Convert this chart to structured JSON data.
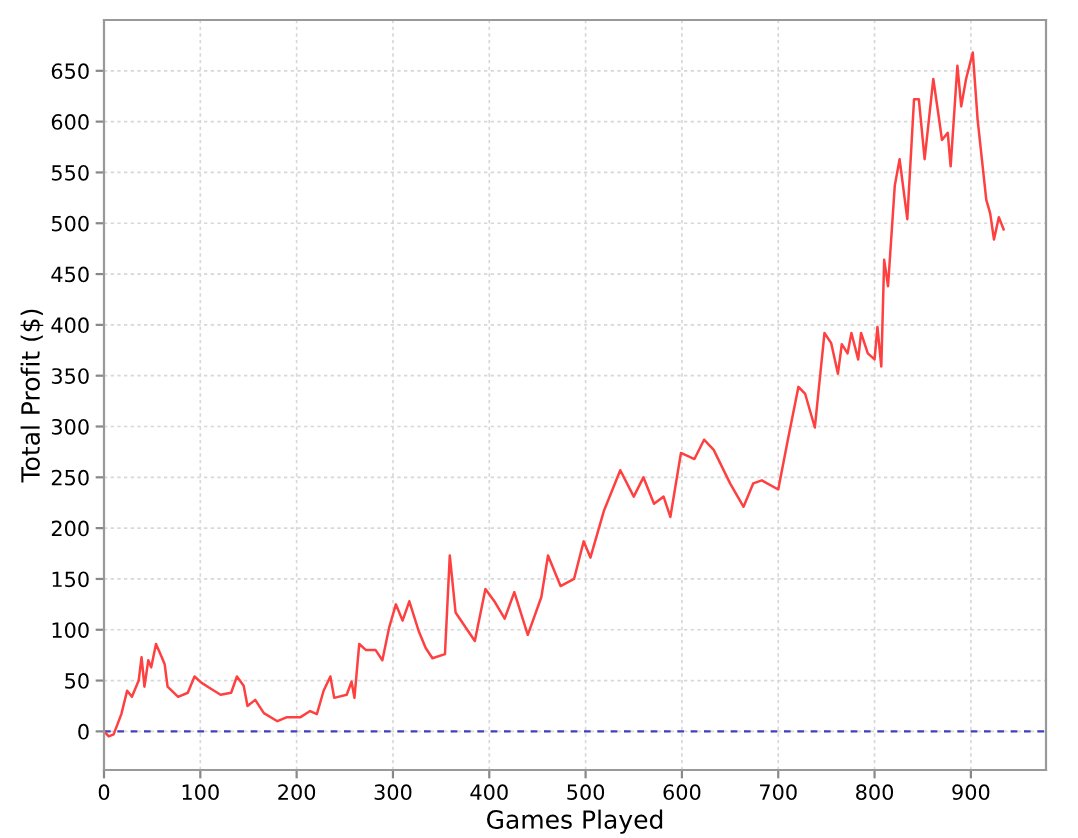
{
  "chart_data": {
    "type": "line",
    "xlabel": "Games Played",
    "ylabel": "Total Profit ($)",
    "xlim": [
      0,
      978
    ],
    "ylim": [
      -38,
      700
    ],
    "xticks": [
      0,
      100,
      200,
      300,
      400,
      500,
      600,
      700,
      800,
      900
    ],
    "yticks": [
      0,
      50,
      100,
      150,
      200,
      250,
      300,
      350,
      400,
      450,
      500,
      550,
      600,
      650
    ],
    "grid": true,
    "legend": false,
    "marker": "none",
    "line_style": "solid",
    "ref_lines": [
      {
        "axis": "y",
        "value": 0,
        "color": "#4040c0",
        "line_style": "dashed"
      }
    ],
    "series": [
      {
        "color": "#ff4040",
        "x": [
          0,
          5,
          10,
          18,
          24,
          29,
          36,
          39,
          42,
          46,
          49,
          54,
          60,
          63,
          66,
          77,
          87,
          94,
          101,
          111,
          121,
          132,
          138,
          145,
          149,
          157,
          166,
          180,
          190,
          204,
          214,
          221,
          228,
          235,
          239,
          252,
          257,
          260,
          265,
          272,
          282,
          289,
          296,
          303,
          310,
          317,
          327,
          334,
          341,
          354,
          359,
          365,
          385,
          396,
          406,
          416,
          426,
          440,
          454,
          461,
          474,
          488,
          498,
          505,
          519,
          536,
          550,
          560,
          571,
          581,
          588,
          599,
          613,
          623,
          633,
          650,
          664,
          674,
          683,
          700,
          710,
          721,
          728,
          738,
          748,
          755,
          762,
          766,
          772,
          776,
          783,
          786,
          793,
          800,
          803,
          807,
          810,
          814,
          821,
          826,
          834,
          841,
          846,
          852,
          861,
          866,
          870,
          876,
          879,
          886,
          890,
          895,
          902,
          907,
          916,
          920,
          924,
          929,
          934
        ],
        "values": [
          0,
          -5,
          -3,
          17,
          40,
          34,
          50,
          73,
          44,
          70,
          63,
          86,
          73,
          66,
          44,
          34,
          38,
          54,
          48,
          42,
          36,
          38,
          54,
          45,
          25,
          31,
          18,
          10,
          14,
          14,
          20,
          17,
          40,
          54,
          33,
          36,
          49,
          33,
          86,
          80,
          80,
          70,
          102,
          125,
          109,
          128,
          98,
          82,
          72,
          76,
          173,
          117,
          89,
          140,
          127,
          111,
          137,
          95,
          132,
          173,
          143,
          150,
          187,
          171,
          217,
          257,
          231,
          250,
          224,
          231,
          211,
          274,
          268,
          287,
          277,
          244,
          221,
          244,
          247,
          238,
          287,
          339,
          332,
          299,
          392,
          382,
          352,
          381,
          372,
          392,
          366,
          392,
          372,
          366,
          398,
          359,
          464,
          438,
          537,
          563,
          504,
          622,
          622,
          563,
          642,
          609,
          582,
          589,
          556,
          655,
          615,
          642,
          668,
          602,
          523,
          510,
          484,
          506,
          494
        ]
      }
    ]
  }
}
